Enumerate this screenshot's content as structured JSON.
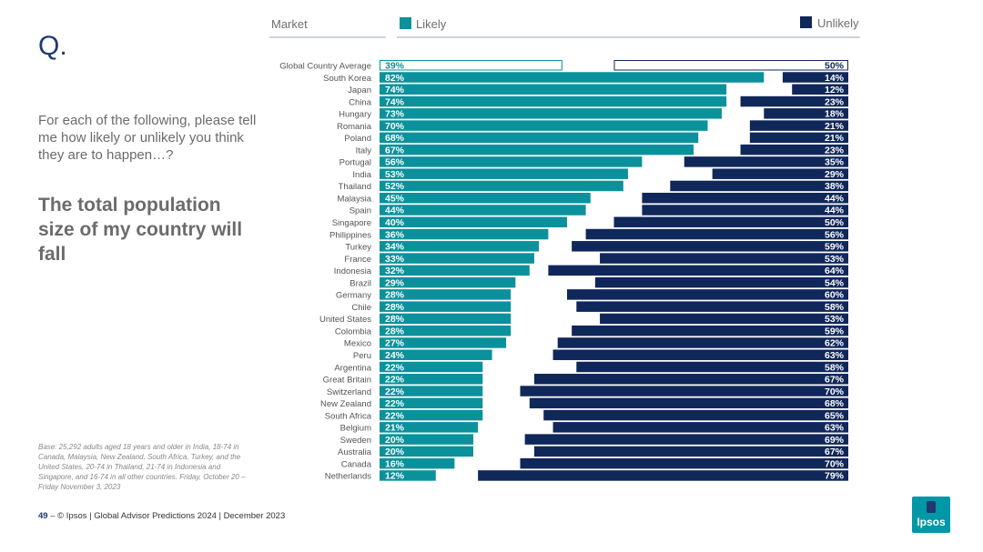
{
  "q_label": "Q.",
  "question": "For each of the following, please tell me how likely or unlikely you think they are to happen…?",
  "statement": "The total population size of my country will fall",
  "base_note": "Base: 25,292 adults aged 18 years and older in India, 18-74 in Canada, Malaysia, New Zealand, South Africa, Turkey, and the United States, 20-74 in Thailand, 21-74 in Indonesia and Singapore, and 16-74 in all other countries. Friday, October 20 – Friday November 3, 2023",
  "footer": {
    "page_number": "49",
    "dash": " – ",
    "text": "© Ipsos | Global Advisor Predictions 2024 | December 2023"
  },
  "logo": {
    "text": "Ipsos"
  },
  "colors": {
    "likely": "#0b919c",
    "unlikely": "#10275a",
    "header_text": "#6e6e6e",
    "label_text": "#555555"
  },
  "chart_data": {
    "type": "bar",
    "orientation": "horizontal-diverging",
    "x_header": "Market",
    "value_unit": "%",
    "xlim": [
      0,
      100
    ],
    "categories": [
      "Global Country Average",
      "South Korea",
      "Japan",
      "China",
      "Hungary",
      "Romania",
      "Poland",
      "Italy",
      "Portugal",
      "India",
      "Thailand",
      "Malaysia",
      "Spain",
      "Singapore",
      "Philippines",
      "Turkey",
      "France",
      "Indonesia",
      "Brazil",
      "Germany",
      "Chile",
      "United States",
      "Colombia",
      "Mexico",
      "Peru",
      "Argentina",
      "Great Britain",
      "Switzerland",
      "New Zealand",
      "South Africa",
      "Belgium",
      "Sweden",
      "Australia",
      "Canada",
      "Netherlands"
    ],
    "series": [
      {
        "name": "Likely",
        "values": [
          39,
          82,
          74,
          74,
          73,
          70,
          68,
          67,
          56,
          53,
          52,
          45,
          44,
          40,
          36,
          34,
          33,
          32,
          29,
          28,
          28,
          28,
          28,
          27,
          24,
          22,
          22,
          22,
          22,
          22,
          21,
          20,
          20,
          16,
          12
        ]
      },
      {
        "name": "Unlikely",
        "values": [
          50,
          14,
          12,
          23,
          18,
          21,
          21,
          23,
          35,
          29,
          38,
          44,
          44,
          50,
          56,
          59,
          53,
          64,
          54,
          60,
          58,
          53,
          59,
          62,
          63,
          58,
          67,
          70,
          68,
          65,
          63,
          69,
          67,
          70,
          79
        ]
      }
    ],
    "highlight": "Global Country Average"
  }
}
